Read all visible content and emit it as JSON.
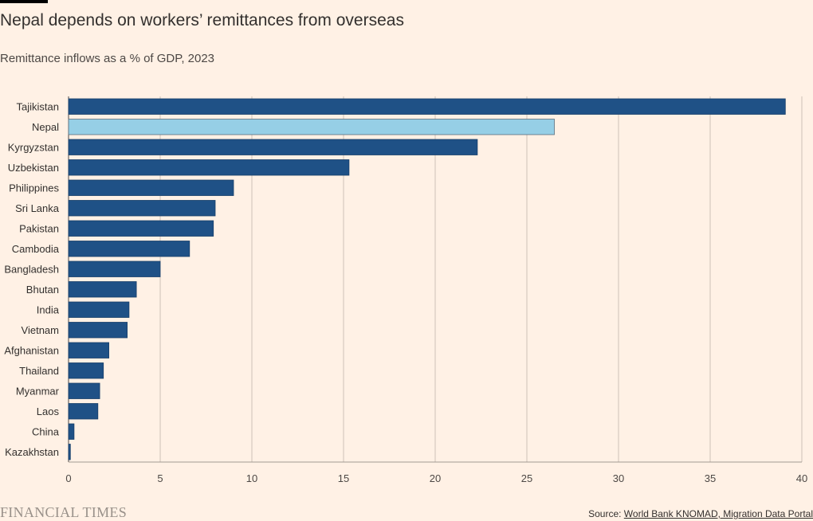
{
  "header": {
    "title": "Nepal depends on workers’ remittances from overseas",
    "subtitle": "Remittance inflows as a % of GDP, 2023"
  },
  "footer": {
    "brand": "FINANCIAL TIMES",
    "source_prefix": "Source: ",
    "source_link": "World Bank KNOMAD, Migration Data Portal"
  },
  "colors": {
    "bar": "#1f5186",
    "highlight": "#96cfe6",
    "grid": "#ccc1b7",
    "background": "#fff1e5"
  },
  "chart_data": {
    "type": "bar",
    "orientation": "horizontal",
    "title": "Nepal depends on workers’ remittances from overseas",
    "subtitle": "Remittance inflows as a % of GDP, 2023",
    "categories": [
      "Tajikistan",
      "Nepal",
      "Kyrgyzstan",
      "Uzbekistan",
      "Philippines",
      "Sri Lanka",
      "Pakistan",
      "Cambodia",
      "Bangladesh",
      "Bhutan",
      "India",
      "Vietnam",
      "Afghanistan",
      "Thailand",
      "Myanmar",
      "Laos",
      "China",
      "Kazakhstan"
    ],
    "values": [
      39.1,
      26.5,
      22.3,
      15.3,
      9.0,
      8.0,
      7.9,
      6.6,
      5.0,
      3.7,
      3.3,
      3.2,
      2.2,
      1.9,
      1.7,
      1.6,
      0.3,
      0.1
    ],
    "highlight": "Nepal",
    "xlim": [
      0,
      40
    ],
    "xticks": [
      0,
      5,
      10,
      15,
      20,
      25,
      30,
      35,
      40
    ],
    "grid": true
  }
}
